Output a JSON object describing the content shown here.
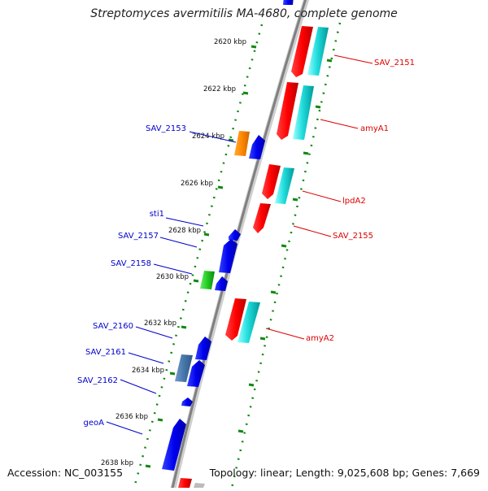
{
  "title": "Streptomyces avermitilis MA-4680, complete genome",
  "footer": {
    "accession": "Accession: NC_003155",
    "summary": "Topology: linear; Length: 9,025,608 bp; Genes: 7,669"
  },
  "colors": {
    "left_label": "#0000cc",
    "right_label": "#dd0000",
    "tick_green": "#118811",
    "backbone": "#8a8a8a"
  },
  "tick_labels": [
    "2620 kbp",
    "2622 kbp",
    "2624 kbp",
    "2626 kbp",
    "2628 kbp",
    "2630 kbp",
    "2632 kbp",
    "2634 kbp",
    "2636 kbp",
    "2638 kbp"
  ],
  "left_genes": [
    "SAV_2153",
    "sti1",
    "SAV_2157",
    "SAV_2158",
    "SAV_2160",
    "SAV_2161",
    "SAV_2162",
    "geoA"
  ],
  "right_genes": [
    "SAV_2151",
    "amyA1",
    "lpdA2",
    "SAV_2155",
    "amyA2"
  ]
}
